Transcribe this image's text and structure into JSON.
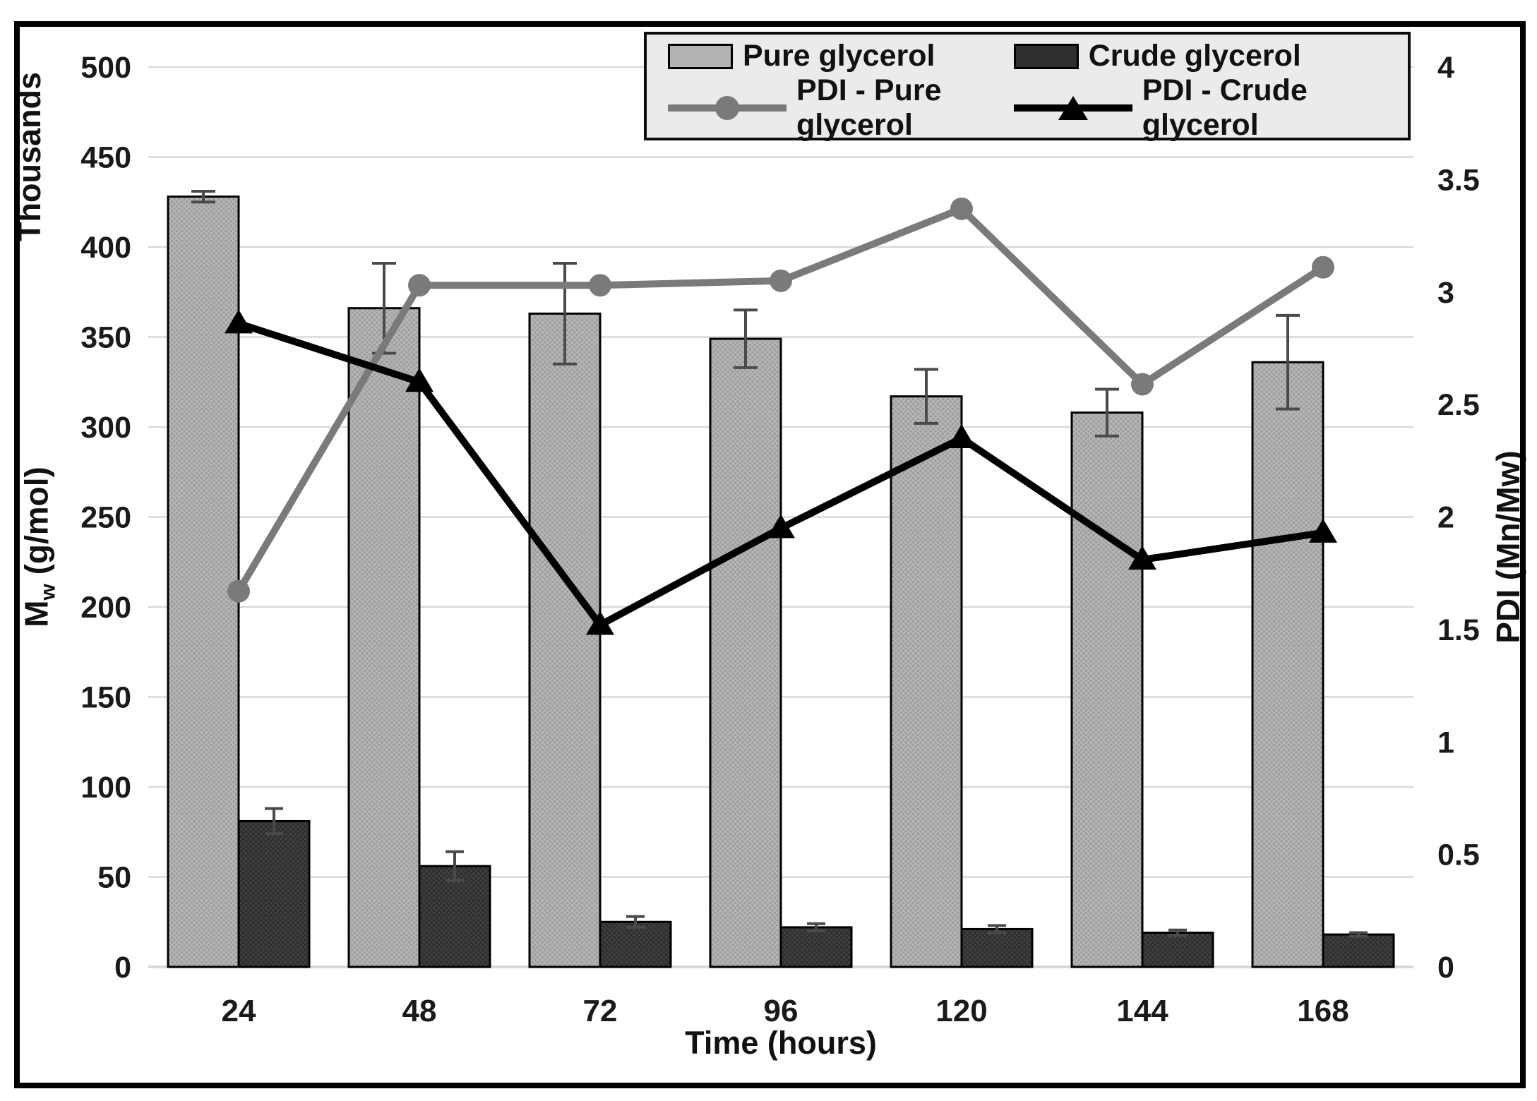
{
  "figure": {
    "kind": "dual-axis bar and line chart",
    "background": "#ffffff",
    "border_color": "#000000"
  },
  "chart_data": {
    "type": "bar",
    "title": "",
    "categories": [
      "24",
      "48",
      "72",
      "96",
      "120",
      "144",
      "168"
    ],
    "x_axis": {
      "title": "Time (hours)"
    },
    "left_axis": {
      "units_label": "Thousands",
      "title_main": "M",
      "title_sub": "w",
      "title_rest": " (g/mol)",
      "range": [
        0,
        500
      ],
      "tick_step": 50,
      "tick_labels": [
        "0",
        "50",
        "100",
        "150",
        "200",
        "250",
        "300",
        "350",
        "400",
        "450",
        "500"
      ]
    },
    "right_axis": {
      "title": "PDI (Mn/Mw)",
      "range": [
        0,
        4
      ],
      "tick_step": 0.5,
      "tick_labels": [
        "0",
        "0.5",
        "1",
        "1.5",
        "2",
        "2.5",
        "3",
        "3.5",
        "4"
      ]
    },
    "grid": true,
    "legend_position": "top",
    "series": [
      {
        "name": "Pure glycerol",
        "type": "bar",
        "axis": "left",
        "color": "#b4b4b4",
        "dot_color": "#9a9a9a",
        "values": [
          428,
          366,
          363,
          349,
          317,
          308,
          336
        ],
        "errors": [
          3,
          25,
          28,
          16,
          15,
          13,
          26
        ]
      },
      {
        "name": "Crude glycerol",
        "type": "bar",
        "axis": "left",
        "color": "#2f2f2f",
        "dot_color": "#454545",
        "values": [
          81,
          56,
          25,
          22,
          21,
          19,
          18
        ],
        "errors": [
          7,
          8,
          3,
          2,
          2,
          1.5,
          1
        ]
      },
      {
        "name": "PDI - Pure glycerol",
        "type": "line",
        "axis": "right",
        "color": "#7a7a7a",
        "marker": "circle",
        "values": [
          1.67,
          3.03,
          3.03,
          3.05,
          3.37,
          2.59,
          3.11
        ]
      },
      {
        "name": "PDI - Crude glycerol",
        "type": "line",
        "axis": "right",
        "color": "#000000",
        "marker": "triangle",
        "values": [
          2.86,
          2.6,
          1.52,
          1.95,
          2.35,
          1.81,
          1.93
        ]
      }
    ],
    "style": {
      "gridline_color": "#d9d9d9",
      "error_bar_color": "#4a4a4a",
      "tick_label_color": "#1a1a1a",
      "legend_bg": "#ebebeb"
    }
  }
}
